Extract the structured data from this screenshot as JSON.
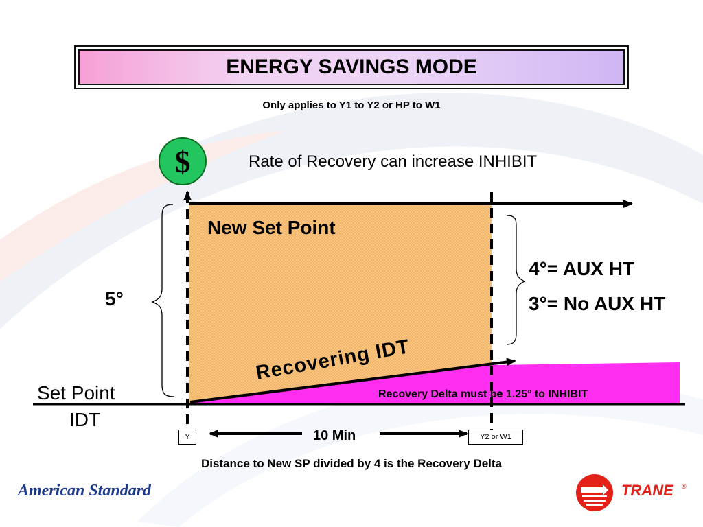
{
  "title": "ENERGY SAVINGS MODE",
  "subtitle": "Only applies to Y1 to Y2 or HP to W1",
  "dollar_symbol": "$",
  "rate_note": "Rate of Recovery can increase INHIBIT",
  "labels": {
    "new_set_point": "New Set Point",
    "aux_ht": "4°= AUX HT",
    "no_aux_ht": "3°= No AUX HT",
    "five_degrees": "5°",
    "set_point": "Set Point",
    "idt": "IDT",
    "recovering_idt": "Recovering IDT",
    "recovery_delta": "Recovery Delta must be 1.25° to INHIBIT",
    "y": "Y",
    "y2_or_w1": "Y2 or W1",
    "ten_min": "10 Min",
    "bottom_note": "Distance to New SP divided by 4 is the Recovery Delta"
  },
  "logos": {
    "american_standard": "American Standard",
    "trane": "TRANE",
    "trane_mark": "®"
  },
  "colors": {
    "region_fill": "#f5b567",
    "delta_fill": "#ff2ef0",
    "dollar_green": "#22c55e",
    "trane_red": "#e32119",
    "as_blue": "#1e3a8a"
  }
}
